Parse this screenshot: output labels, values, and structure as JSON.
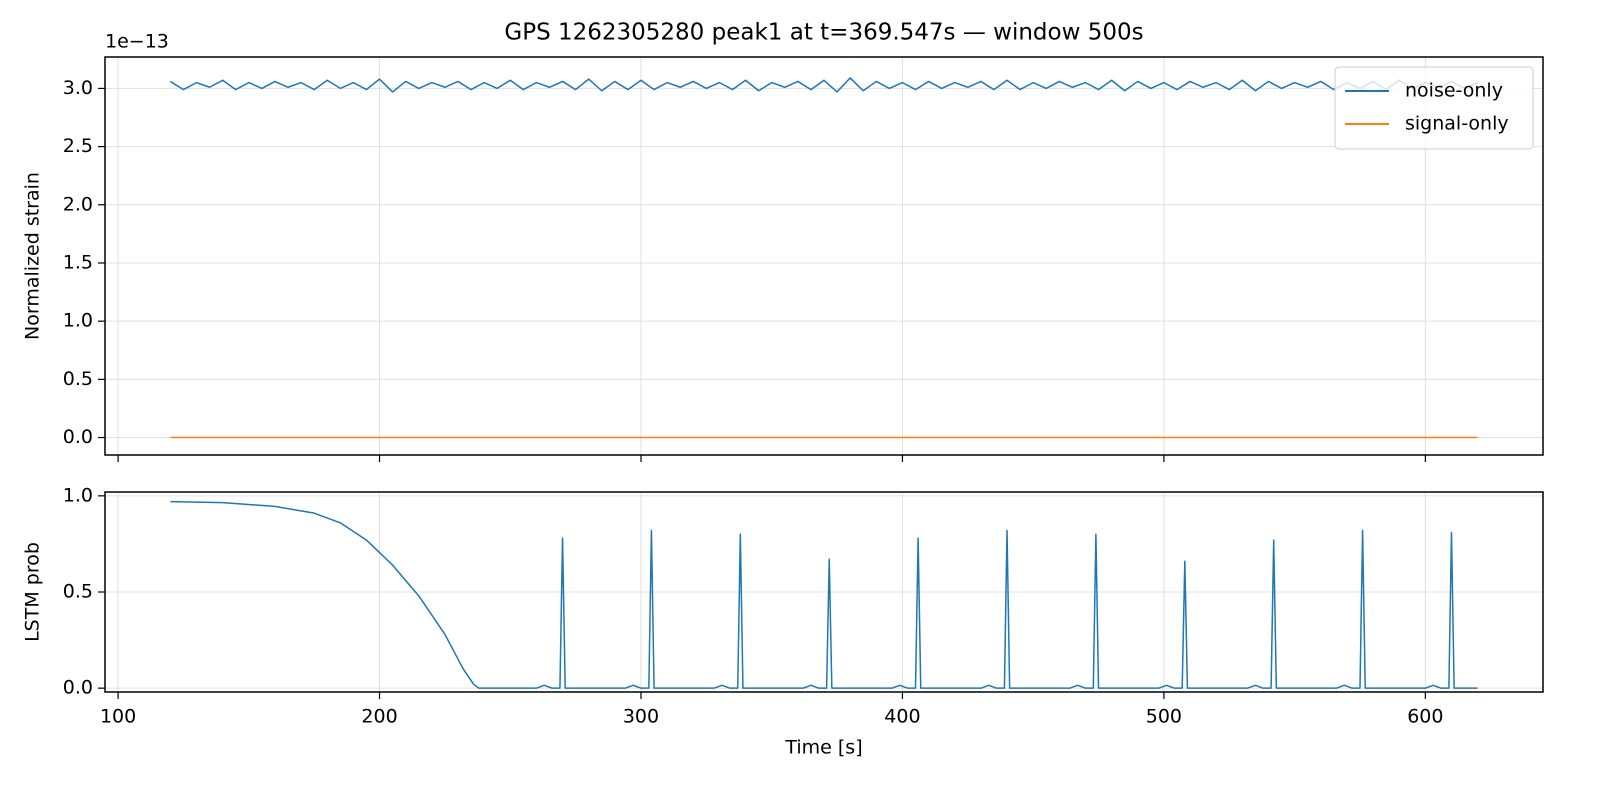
{
  "chart_data": [
    {
      "type": "line",
      "title": "GPS 1262305280 peak1 at t=369.547s — window 500s",
      "y_label": "Normalized strain",
      "y_offset_label": "1e−13",
      "xlim": [
        95,
        645
      ],
      "xticks": [
        100,
        200,
        300,
        400,
        500,
        600
      ],
      "ylim": [
        -0.15,
        3.27
      ],
      "yticks": [
        {
          "value": 0,
          "label": "0.0"
        },
        0.5,
        {
          "value": 1,
          "label": "1.0"
        },
        1.5,
        {
          "value": 2,
          "label": "2.0"
        },
        2.5,
        {
          "value": 3,
          "label": "3.0"
        }
      ],
      "grid": true,
      "legend": "upper right",
      "series": [
        {
          "name": "noise-only",
          "color": "#1f77b4",
          "x": [
            120,
            125,
            130,
            135,
            140,
            145,
            150,
            155,
            160,
            165,
            170,
            175,
            180,
            185,
            190,
            195,
            200,
            205,
            210,
            215,
            220,
            225,
            230,
            235,
            240,
            245,
            250,
            255,
            260,
            265,
            270,
            275,
            280,
            285,
            290,
            295,
            300,
            305,
            310,
            315,
            320,
            325,
            330,
            335,
            340,
            345,
            350,
            355,
            360,
            365,
            370,
            375,
            380,
            385,
            390,
            395,
            400,
            405,
            410,
            415,
            420,
            425,
            430,
            435,
            440,
            445,
            450,
            455,
            460,
            465,
            470,
            475,
            480,
            485,
            490,
            495,
            500,
            505,
            510,
            515,
            520,
            525,
            530,
            535,
            540,
            545,
            550,
            555,
            560,
            565,
            570,
            575,
            580,
            585,
            590,
            595,
            600,
            605,
            610,
            615,
            620
          ],
          "values": [
            3.06,
            2.99,
            3.05,
            3.01,
            3.07,
            2.99,
            3.05,
            3.0,
            3.06,
            3.01,
            3.05,
            2.99,
            3.07,
            3.0,
            3.05,
            2.99,
            3.08,
            2.97,
            3.06,
            3.0,
            3.05,
            3.01,
            3.06,
            2.99,
            3.05,
            3.0,
            3.07,
            2.99,
            3.05,
            3.01,
            3.06,
            2.99,
            3.08,
            2.98,
            3.06,
            2.99,
            3.07,
            2.99,
            3.05,
            3.01,
            3.06,
            3.0,
            3.05,
            2.99,
            3.07,
            2.98,
            3.05,
            3.01,
            3.06,
            2.99,
            3.07,
            2.97,
            3.09,
            2.98,
            3.06,
            3.0,
            3.05,
            2.99,
            3.06,
            3.0,
            3.05,
            3.01,
            3.06,
            2.99,
            3.07,
            2.99,
            3.05,
            3.0,
            3.06,
            3.01,
            3.05,
            2.99,
            3.07,
            2.98,
            3.06,
            3.0,
            3.05,
            2.99,
            3.06,
            3.01,
            3.05,
            2.99,
            3.07,
            2.98,
            3.06,
            3.0,
            3.05,
            3.01,
            3.06,
            2.99,
            3.05,
            3.0,
            3.06,
            2.99,
            3.07,
            3.0,
            3.05,
            3.01,
            3.06,
            3.0,
            3.05
          ]
        },
        {
          "name": "signal-only",
          "color": "#ff7f0e",
          "x": [
            120,
            620
          ],
          "values": [
            0,
            0
          ]
        }
      ]
    },
    {
      "type": "line",
      "y_label": "LSTM prob",
      "x_label": "Time [s]",
      "xlim": [
        95,
        645
      ],
      "xticks": [
        100,
        200,
        300,
        400,
        500,
        600
      ],
      "ylim": [
        -0.02,
        1.02
      ],
      "yticks": [
        {
          "value": 0,
          "label": "0.0"
        },
        0.5,
        {
          "value": 1,
          "label": "1.0"
        }
      ],
      "grid": true,
      "series": [
        {
          "color": "#1f77b4",
          "x": [
            120,
            140,
            160,
            175,
            185,
            195,
            205,
            215,
            225,
            232,
            236,
            238,
            260,
            263,
            266,
            269,
            270,
            271,
            294,
            297,
            300,
            303,
            304,
            305,
            328,
            331,
            334,
            337,
            338,
            339,
            362,
            365,
            368,
            371,
            372,
            373,
            396,
            399,
            402,
            405,
            406,
            407,
            430,
            433,
            436,
            439,
            440,
            441,
            464,
            467,
            470,
            473,
            474,
            475,
            498,
            501,
            504,
            507,
            508,
            509,
            532,
            535,
            538,
            541,
            542,
            543,
            566,
            569,
            572,
            575,
            576,
            577,
            600,
            603,
            606,
            609,
            610,
            611,
            620
          ],
          "values": [
            0.97,
            0.965,
            0.945,
            0.91,
            0.86,
            0.77,
            0.64,
            0.48,
            0.28,
            0.1,
            0.02,
            0,
            0,
            0.015,
            0,
            0,
            0.78,
            0,
            0,
            0.015,
            0,
            0,
            0.82,
            0,
            0,
            0.015,
            0,
            0,
            0.8,
            0,
            0,
            0.015,
            0,
            0,
            0.67,
            0,
            0,
            0.015,
            0,
            0,
            0.78,
            0,
            0,
            0.015,
            0,
            0,
            0.82,
            0,
            0,
            0.015,
            0,
            0,
            0.8,
            0,
            0,
            0.015,
            0,
            0,
            0.66,
            0,
            0,
            0.015,
            0,
            0,
            0.77,
            0,
            0,
            0.015,
            0,
            0,
            0.82,
            0,
            0,
            0.015,
            0,
            0,
            0.81,
            0,
            0
          ]
        }
      ]
    }
  ]
}
